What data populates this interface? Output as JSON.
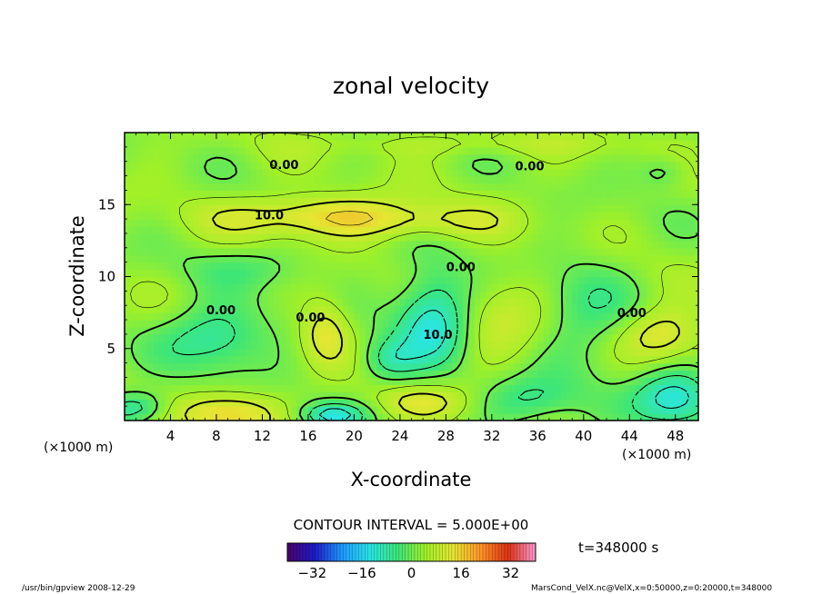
{
  "chart_data": {
    "type": "heatmap",
    "title": "zonal velocity",
    "xlabel": "X-coordinate",
    "ylabel": "Z-coordinate",
    "x_unit_label": "(×1000 m)",
    "y_unit_label": "(×1000 m)",
    "xlim": [
      0,
      50
    ],
    "ylim": [
      0,
      20
    ],
    "x_ticks": [
      4,
      8,
      12,
      16,
      20,
      24,
      28,
      32,
      36,
      40,
      44,
      48
    ],
    "y_ticks": [
      5,
      10,
      15
    ],
    "contour_interval_label": "CONTOUR INTERVAL = 5.000E+00",
    "time_label": "t=348000 s",
    "colorbar": {
      "range": [
        -40,
        40
      ],
      "ticks": [
        -32,
        -16,
        0,
        16,
        32
      ],
      "colormap": [
        "#4b006e",
        "#1b1bc8",
        "#1e9bff",
        "#28e6e6",
        "#3ce678",
        "#a0f028",
        "#e6e632",
        "#ff9628",
        "#dc3214",
        "#ff9ad2"
      ]
    },
    "contour_labels": [
      {
        "text": "0.00",
        "x": 13.9,
        "z": 17.7
      },
      {
        "text": "0.00",
        "x": 35.3,
        "z": 17.6
      },
      {
        "text": "10.0",
        "x": 12.6,
        "z": 14.2
      },
      {
        "text": "0.00",
        "x": 29.3,
        "z": 10.6
      },
      {
        "text": "0.00",
        "x": 8.4,
        "z": 7.6
      },
      {
        "text": "0.00",
        "x": 16.2,
        "z": 7.1
      },
      {
        "text": "10.0",
        "x": 27.3,
        "z": 5.9
      },
      {
        "text": "0.00",
        "x": 44.2,
        "z": 7.4
      }
    ],
    "features": [
      {
        "kind": "jet",
        "x": 17,
        "z": 14.2,
        "value": 12,
        "sx": 6,
        "sz": 1.0
      },
      {
        "kind": "jet",
        "x": 27,
        "z": 13.8,
        "value": 6,
        "sx": 5,
        "sz": 0.9
      },
      {
        "kind": "jet",
        "x": 30,
        "z": 19.2,
        "value": 4,
        "sx": 10,
        "sz": 0.6
      },
      {
        "kind": "eddy",
        "x": 8,
        "z": 5.8,
        "value": -12,
        "sx": 3.2,
        "sz": 1.6
      },
      {
        "kind": "eddy",
        "x": 27,
        "z": 7.2,
        "value": -16,
        "sx": 2.3,
        "sz": 2.4
      },
      {
        "kind": "eddy",
        "x": 23,
        "z": 4.2,
        "value": -10,
        "sx": 1.8,
        "sz": 1.1
      },
      {
        "kind": "eddy",
        "x": 40,
        "z": 7.2,
        "value": -7,
        "sx": 3.0,
        "sz": 3.0
      },
      {
        "kind": "eddy",
        "x": 48,
        "z": 1.6,
        "value": -16,
        "sx": 2.5,
        "sz": 1.4
      },
      {
        "kind": "eddy",
        "x": 1,
        "z": 0.9,
        "value": -12,
        "sx": 2.0,
        "sz": 0.8
      },
      {
        "kind": "eddy",
        "x": 18,
        "z": 0.4,
        "value": -14,
        "sx": 2.0,
        "sz": 0.6
      },
      {
        "kind": "eddy",
        "x": 35,
        "z": 1.4,
        "value": -9,
        "sx": 3.0,
        "sz": 1.2
      },
      {
        "kind": "eddy",
        "x": 11,
        "z": 10.6,
        "value": -5,
        "sx": 4.0,
        "sz": 1.0
      },
      {
        "kind": "eddy",
        "x": 47,
        "z": 17.3,
        "value": -6,
        "sx": 1.5,
        "sz": 0.8
      },
      {
        "kind": "jet",
        "x": 17.5,
        "z": 6.2,
        "value": 10,
        "sx": 1.5,
        "sz": 1.6
      },
      {
        "kind": "jet",
        "x": 47,
        "z": 6.0,
        "value": 11,
        "sx": 2.5,
        "sz": 1.3
      },
      {
        "kind": "jet",
        "x": 9,
        "z": 0.5,
        "value": 13,
        "sx": 3.0,
        "sz": 1.0
      },
      {
        "kind": "jet",
        "x": 26,
        "z": 1.3,
        "value": 8,
        "sx": 3.0,
        "sz": 0.9
      },
      {
        "kind": "jet",
        "x": 33,
        "z": 7.0,
        "value": 6,
        "sx": 3.0,
        "sz": 2.5
      }
    ]
  },
  "footer": {
    "left": "/usr/bin/gpview   2008-12-29",
    "right": "MarsCond_VelX.nc@VelX,x=0:50000,z=0:20000,t=348000"
  }
}
